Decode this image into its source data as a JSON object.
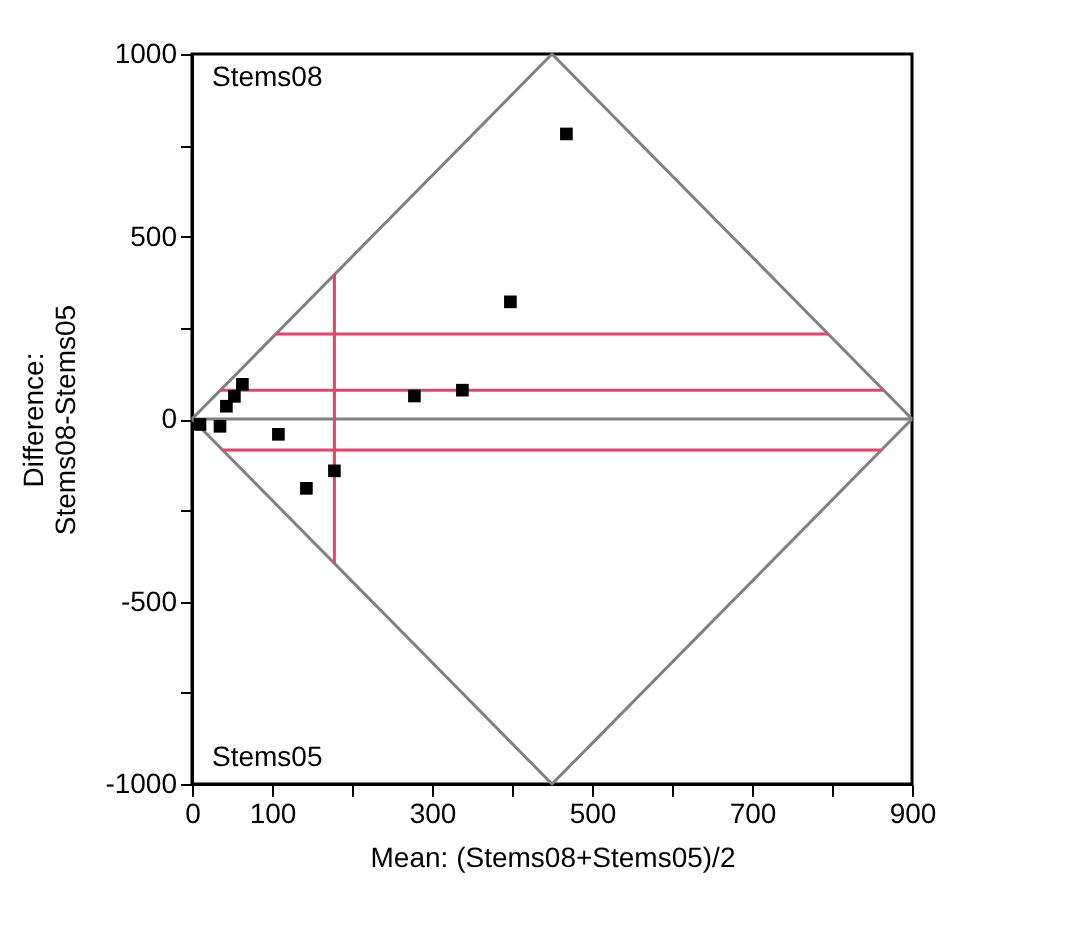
{
  "chart_data": {
    "type": "scatter",
    "xlabel": "Mean: (Stems08+Stems05)/2",
    "ylabel": "Difference:\nStems08-Stems05",
    "annotations": [
      "Stems08",
      "Stems05"
    ],
    "x": [
      10,
      35,
      43,
      53,
      63,
      108,
      143,
      178,
      278,
      338,
      398,
      468
    ],
    "series": [
      {
        "type": "line",
        "marker": "none",
        "color": "#808080",
        "x": [
          0,
          450,
          900
        ],
        "values": [
          0,
          1000,
          0
        ]
      },
      {
        "type": "line",
        "marker": "none",
        "color": "#808080",
        "x": [
          0,
          450,
          900
        ],
        "values": [
          0,
          -1000,
          0
        ]
      },
      {
        "type": "line",
        "marker": "none",
        "color": "#e8416b",
        "x": [
          105,
          795
        ],
        "values": [
          233,
          233
        ]
      },
      {
        "type": "line",
        "marker": "none",
        "color": "#e8416b",
        "x": [
          36,
          864
        ],
        "values": [
          79,
          79
        ]
      },
      {
        "type": "line",
        "marker": "none",
        "color": "#e8416b",
        "x": [
          38,
          862
        ],
        "values": [
          -85,
          -85
        ]
      },
      {
        "type": "line",
        "marker": "none",
        "color": "#e8416b",
        "x": [
          178,
          178
        ],
        "values": [
          -396,
          396
        ]
      },
      {
        "color": "#000000",
        "values": [
          -15,
          -20,
          35,
          62,
          95,
          -42,
          -190,
          -142,
          63,
          79,
          321,
          781
        ]
      }
    ],
    "marker": "square",
    "xlim": [
      0,
      900
    ],
    "xticks": [
      0,
      100,
      {
        "value": 200,
        "label": null
      },
      300,
      {
        "value": 400,
        "label": null
      },
      500,
      {
        "value": 600,
        "label": null
      },
      700,
      {
        "value": 800,
        "label": null
      },
      900
    ],
    "ylim": [
      -1000,
      1000
    ],
    "yticks": [
      -1000,
      {
        "value": -750,
        "label": null
      },
      -500,
      {
        "value": -250,
        "label": null
      },
      0,
      {
        "value": 250,
        "label": null
      },
      500,
      {
        "value": 750,
        "label": null
      },
      1000
    ],
    "ref_lines": [
      {
        "axis": "y",
        "value": 0,
        "color": "#808080"
      }
    ],
    "grid": false
  }
}
